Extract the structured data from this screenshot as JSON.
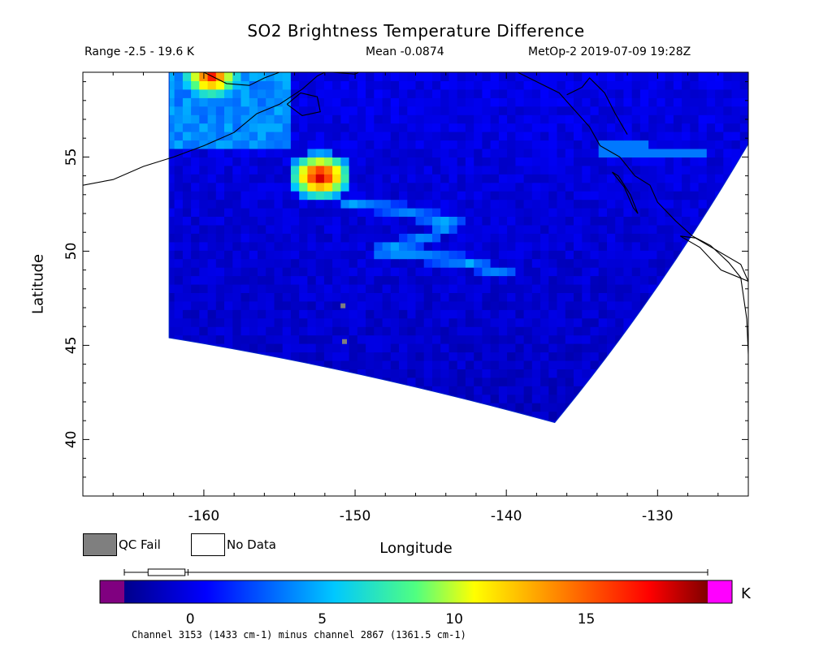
{
  "header": {
    "title": "SO2 Brightness Temperature Difference",
    "range": "Range -2.5 - 19.6 K",
    "mean": "Mean -0.0874",
    "satellite_time": "MetOp-2 2019-07-09 19:28Z"
  },
  "legend": {
    "qc_fail": "QC Fail",
    "no_data": "No Data",
    "qc_fail_color": "#7f7f7f",
    "no_data_color": "#ffffff"
  },
  "colorbar": {
    "unit": "K",
    "ticks": [
      "0",
      "5",
      "10",
      "15"
    ],
    "tick_values": [
      0,
      5,
      10,
      15
    ],
    "range": [
      -2.5,
      19.6
    ],
    "under_color": "#800080",
    "over_color": "#ff00ff",
    "footnote": "Channel 3153 (1433 cm-1) minus channel 2867 (1361.5 cm-1)"
  },
  "chart_data": {
    "type": "heatmap",
    "title": "SO2 Brightness Temperature Difference",
    "xlabel": "Longitude",
    "ylabel": "Latitude",
    "xlim": [
      -168,
      -124
    ],
    "ylim": [
      37,
      59.5
    ],
    "xticks": [
      -160,
      -150,
      -140,
      -130
    ],
    "xtick_labels": [
      "-160",
      "-150",
      "-140",
      "-130"
    ],
    "yticks": [
      40,
      45,
      50,
      55
    ],
    "ytick_labels": [
      "40",
      "45",
      "50",
      "55"
    ],
    "value_range": [
      -2.5,
      19.6
    ],
    "mean": -0.0874,
    "units": "K",
    "features": [
      {
        "kind": "hotspot",
        "lon": -152.3,
        "lat": 54.0,
        "value": 19.6
      },
      {
        "kind": "hotspot",
        "lon": -159.5,
        "lat": 59.3,
        "value": 17
      },
      {
        "kind": "plume",
        "path": [
          [
            -150.5,
            52.6
          ],
          [
            -147,
            52.2
          ],
          [
            -143.5,
            51.5
          ],
          [
            -145,
            50.8
          ],
          [
            -148.5,
            50.0
          ],
          [
            -143,
            49.5
          ],
          [
            -140,
            48.8
          ]
        ],
        "value": 4
      }
    ],
    "qc_fail_points": [
      [
        -150.8,
        47.1
      ],
      [
        -150.7,
        45.2
      ]
    ],
    "swath_corners": [
      [
        -162.3,
        59.5
      ],
      [
        -124.0,
        59.5
      ],
      [
        -124.0,
        55.7
      ],
      [
        -136.8,
        40.9
      ],
      [
        -162.3,
        45.4
      ]
    ]
  }
}
